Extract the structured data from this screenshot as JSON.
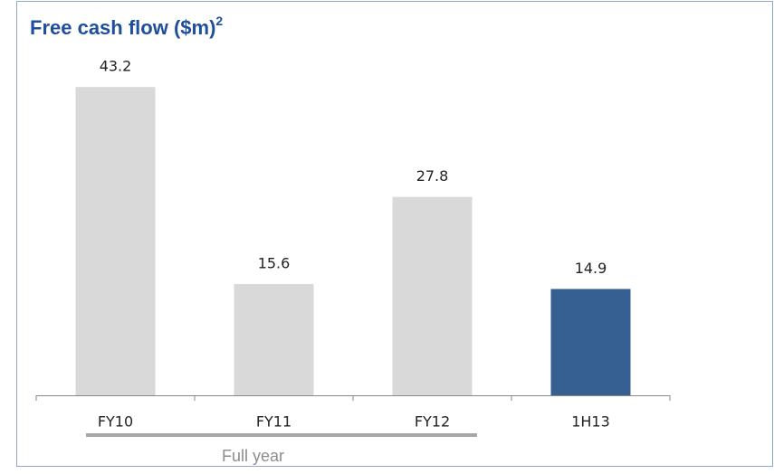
{
  "chart_data": {
    "type": "bar",
    "title": "Free cash flow ($m)",
    "title_superscript": "2",
    "categories": [
      "FY10",
      "FY11",
      "FY12",
      "1H13"
    ],
    "values": [
      43.2,
      15.6,
      27.8,
      14.9
    ],
    "colors": [
      "#d9d9d9",
      "#d9d9d9",
      "#d9d9d9",
      "#366092"
    ],
    "ylim": [
      0,
      45
    ],
    "group_label": "Full year"
  }
}
